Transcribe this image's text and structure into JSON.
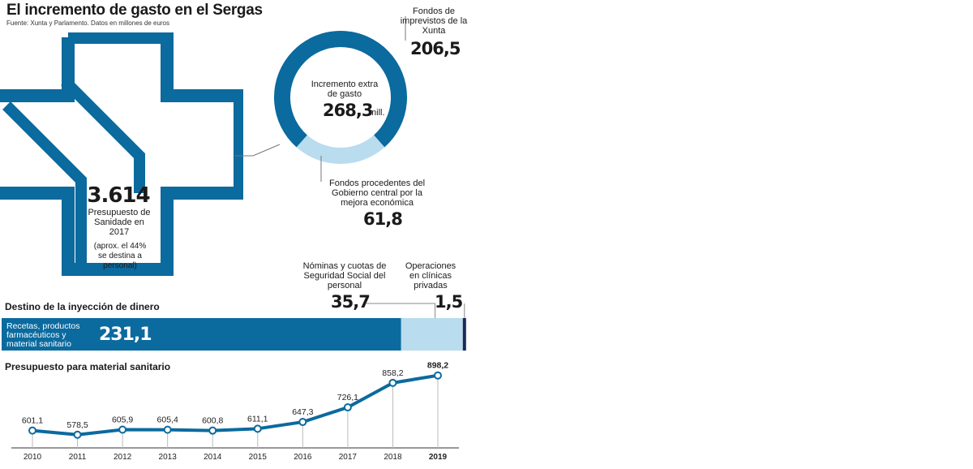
{
  "header": {
    "title": "El incremento de gasto en el Sergas",
    "source": "Fuente: Xunta y Parlamento. Datos en millones de euros"
  },
  "budget": {
    "value": "3.614",
    "label": "Presupuesto de Sanidade en 2017",
    "note": "(aprox. el 44% se destina a personal)"
  },
  "donut": {
    "center_label": "Incremento extra de gasto",
    "center_value": "268,3",
    "center_unit": "mill.",
    "dark_color": "#0b6a9e",
    "light_color": "#b9dcee",
    "segments": [
      {
        "label": "Fondos de imprevistos de la Xunta",
        "value": 206.5,
        "display": "206,5"
      },
      {
        "label": "Fondos procedentes del Gobierno central por la mejora económica",
        "value": 61.8,
        "display": "61,8"
      }
    ]
  },
  "destino": {
    "title": "Destino de la inyección de dinero",
    "items": [
      {
        "label": "Recetas, productos farmacéuticos y material sanitario",
        "value": 231.1,
        "display": "231,1",
        "color": "#0b6a9e"
      },
      {
        "label": "Nóminas y cuotas de Seguridad Social del personal",
        "value": 35.7,
        "display": "35,7",
        "color": "#b9dcee"
      },
      {
        "label": "Operaciones en clínicas privadas",
        "value": 1.5,
        "display": "1,5",
        "color": "#1b2a55"
      }
    ]
  },
  "chart_data": {
    "type": "line",
    "title": "Presupuesto para material sanitario",
    "x": [
      "2010",
      "2011",
      "2012",
      "2013",
      "2014",
      "2015",
      "2016",
      "2017",
      "2018",
      "2019"
    ],
    "series": [
      {
        "values": [
          601.1,
          578.5,
          605.9,
          605.4,
          600.8,
          611.1,
          647.3,
          726.1,
          858.2,
          898.2
        ]
      }
    ],
    "value_labels": [
      "601,1",
      "578,5",
      "605,9",
      "605,4",
      "600,8",
      "611,1",
      "647,3",
      "726,1",
      "858,2",
      "898,2"
    ],
    "highlight": "2019",
    "line_color": "#0b6a9e"
  }
}
